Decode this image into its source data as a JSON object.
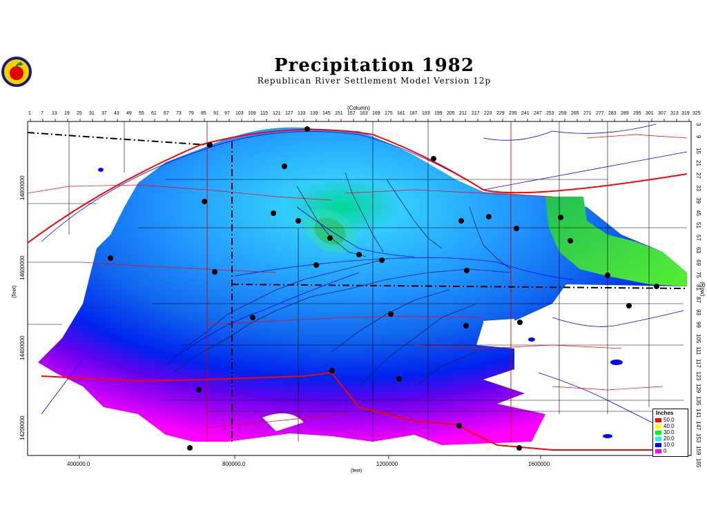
{
  "title": "Precipitation  1982",
  "subtitle": "Republican River Settlement Model Version 12p",
  "column_axis_title": "(Column)",
  "row_axis_title": "(Row)",
  "x_feet_label": "(feet)",
  "y_feet_label": "(feet)",
  "column_ticks": [
    "1",
    "7",
    "13",
    "19",
    "25",
    "31",
    "37",
    "43",
    "49",
    "55",
    "61",
    "67",
    "73",
    "79",
    "85",
    "91",
    "97",
    "103",
    "109",
    "115",
    "121",
    "127",
    "133",
    "139",
    "145",
    "151",
    "157",
    "163",
    "169",
    "175",
    "181",
    "187",
    "193",
    "199",
    "205",
    "211",
    "217",
    "223",
    "229",
    "235",
    "241",
    "247",
    "253",
    "259",
    "265",
    "271",
    "277",
    "283",
    "289",
    "295",
    "301",
    "307",
    "313",
    "319",
    "325"
  ],
  "row_ticks": [
    "3",
    "9",
    "15",
    "21",
    "27",
    "33",
    "39",
    "45",
    "51",
    "57",
    "63",
    "69",
    "75",
    "81",
    "87",
    "93",
    "99",
    "105",
    "111",
    "117",
    "123",
    "129",
    "135",
    "141",
    "147",
    "153",
    "159",
    "165"
  ],
  "x_feet_ticks": [
    "400000.0",
    "800000.0",
    "1200000",
    "1600000"
  ],
  "y_feet_ticks": [
    "14800000",
    "14600000",
    "14400000",
    "14200000"
  ],
  "legend": {
    "title": "Inches",
    "items": [
      {
        "label": "50.0",
        "color": "#ff0000"
      },
      {
        "label": "40.0",
        "color": "#ffff00"
      },
      {
        "label": "30.0",
        "color": "#00ff00"
      },
      {
        "label": "20.0",
        "color": "#00ffff"
      },
      {
        "label": "10.0",
        "color": "#0000ff"
      },
      {
        "label": "0",
        "color": "#ff00ff"
      }
    ]
  },
  "colors": {
    "river": "#0000ff",
    "road": "#ff0000",
    "boundary": "#000000"
  }
}
